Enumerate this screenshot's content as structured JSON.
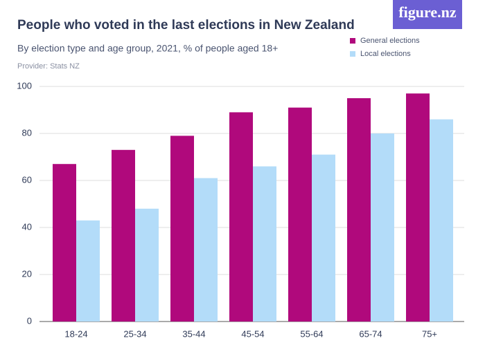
{
  "logo": "figure.nz",
  "chart_data": {
    "type": "bar",
    "title": "People who voted in the last elections in New Zealand",
    "subtitle": "By election type and age group, 2021, % of people aged 18+",
    "provider": "Provider: Stats NZ",
    "categories": [
      "18-24",
      "25-34",
      "35-44",
      "45-54",
      "55-64",
      "65-74",
      "75+"
    ],
    "series": [
      {
        "name": "General elections",
        "color": "#b0097c",
        "values": [
          67,
          73,
          79,
          89,
          91,
          95,
          97
        ]
      },
      {
        "name": "Local elections",
        "color": "#b3dcf9",
        "values": [
          43,
          48,
          61,
          66,
          71,
          80,
          86
        ]
      }
    ],
    "ylim": [
      0,
      100
    ],
    "yticks": [
      0,
      20,
      40,
      60,
      80,
      100
    ],
    "grid": true
  }
}
